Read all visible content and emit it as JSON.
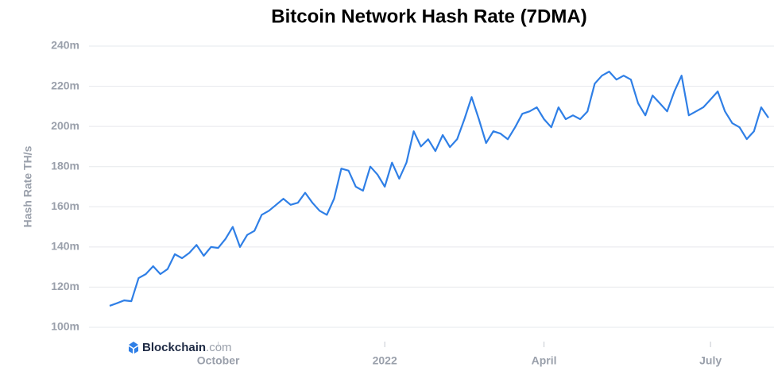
{
  "chart_data": {
    "type": "line",
    "title": "Bitcoin Network Hash Rate (7DMA)",
    "y_label": "Hash Rate TH/s",
    "logo": {
      "brand": "Blockchain",
      "domain": ".com"
    },
    "categories": [
      null,
      null,
      null,
      null,
      null,
      null,
      null,
      null,
      null,
      null,
      null,
      null,
      null,
      null,
      null,
      "October",
      null,
      null,
      null,
      null,
      null,
      null,
      null,
      null,
      null,
      null,
      null,
      null,
      null,
      null,
      null,
      null,
      null,
      null,
      null,
      null,
      null,
      null,
      "2022",
      null,
      null,
      null,
      null,
      null,
      null,
      null,
      null,
      null,
      null,
      null,
      null,
      null,
      null,
      null,
      null,
      null,
      null,
      null,
      null,
      null,
      "April",
      null,
      null,
      null,
      null,
      null,
      null,
      null,
      null,
      null,
      null,
      null,
      null,
      null,
      null,
      null,
      null,
      null,
      null,
      null,
      null,
      null,
      null,
      "July",
      null,
      null,
      null,
      null,
      null,
      null,
      null,
      null
    ],
    "series": [
      {
        "name": "Hash Rate",
        "color": "#2f7fe6",
        "values": [
          110.7,
          112,
          113.4,
          113,
          124.5,
          126.5,
          130.4,
          126.5,
          129,
          136.4,
          134.4,
          137,
          141,
          135.6,
          140,
          139.5,
          144,
          150,
          140,
          146,
          148,
          156,
          158,
          161,
          164,
          161,
          162,
          167,
          162,
          158,
          156,
          164,
          179,
          178,
          170,
          168,
          180,
          176,
          170,
          182,
          174,
          182,
          197.6,
          190,
          193.6,
          187.7,
          195.7,
          189.7,
          193.7,
          203.6,
          214.6,
          203.6,
          191.7,
          197.6,
          196.4,
          193.6,
          199.6,
          206.3,
          207.5,
          209.5,
          203.6,
          199.6,
          209.5,
          203.6,
          205.5,
          203.6,
          207.5,
          221.3,
          225.3,
          227.3,
          223.3,
          225.3,
          223.3,
          211.5,
          205.5,
          215.4,
          211.5,
          207.5,
          217.4,
          225.3,
          205.5,
          207.5,
          209.5,
          213.4,
          217.4,
          207.5,
          201.6,
          199.6,
          193.7,
          197.6,
          209.5,
          204.3
        ]
      }
    ],
    "ylim": [
      100,
      240
    ],
    "yticks": [
      {
        "value": 100,
        "label": "100m"
      },
      {
        "value": 120,
        "label": "120m"
      },
      {
        "value": 140,
        "label": "140m"
      },
      {
        "value": 160,
        "label": "160m"
      },
      {
        "value": 180,
        "label": "180m"
      },
      {
        "value": 200,
        "label": "200m"
      },
      {
        "value": 220,
        "label": "220m"
      },
      {
        "value": 240,
        "label": "240m"
      }
    ],
    "grid": true
  }
}
